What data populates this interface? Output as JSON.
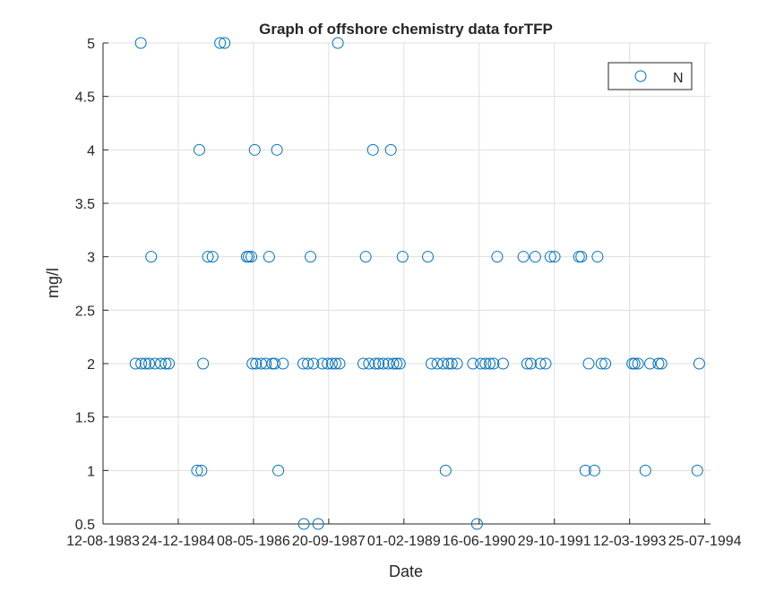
{
  "chart_data": {
    "type": "scatter",
    "title": "Graph of offshore chemistry data forTFP",
    "xlabel": "Date",
    "ylabel": "mg/l",
    "grid": true,
    "legend_position": "top-right",
    "marker": "open-circle",
    "series_color": "#0072BD",
    "xlim": [
      "1983-08-12",
      "1994-09-01"
    ],
    "ylim": [
      0.5,
      5
    ],
    "x_ticks": [
      "1983-08-12",
      "1984-12-24",
      "1986-05-08",
      "1987-09-20",
      "1989-02-01",
      "1990-06-16",
      "1991-10-29",
      "1993-03-12",
      "1994-07-25"
    ],
    "x_tick_labels": [
      "12-08-1983",
      "24-12-1984",
      "08-05-1986",
      "20-09-1987",
      "01-02-1989",
      "16-06-1990",
      "29-10-1991",
      "12-03-1993",
      "25-07-1994"
    ],
    "y_ticks": [
      0.5,
      1,
      1.5,
      2,
      2.5,
      3,
      3.5,
      4,
      4.5,
      5
    ],
    "y_tick_labels": [
      "0.5",
      "1",
      "1.5",
      "2",
      "2.5",
      "3",
      "3.5",
      "4",
      "4.5",
      "5"
    ],
    "series": [
      {
        "name": "N",
        "points": [
          {
            "x": "1984-03-15",
            "y": 2
          },
          {
            "x": "1984-04-19",
            "y": 5
          },
          {
            "x": "1984-04-22",
            "y": 2
          },
          {
            "x": "1984-05-20",
            "y": 2
          },
          {
            "x": "1984-06-14",
            "y": 2
          },
          {
            "x": "1984-06-27",
            "y": 3
          },
          {
            "x": "1984-07-22",
            "y": 2
          },
          {
            "x": "1984-08-30",
            "y": 2
          },
          {
            "x": "1984-10-01",
            "y": 2
          },
          {
            "x": "1984-10-23",
            "y": 2
          },
          {
            "x": "1985-04-28",
            "y": 1
          },
          {
            "x": "1985-05-13",
            "y": 4
          },
          {
            "x": "1985-05-27",
            "y": 1
          },
          {
            "x": "1985-06-07",
            "y": 2
          },
          {
            "x": "1985-07-09",
            "y": 3
          },
          {
            "x": "1985-08-09",
            "y": 3
          },
          {
            "x": "1985-09-28",
            "y": 5
          },
          {
            "x": "1985-10-28",
            "y": 5
          },
          {
            "x": "1986-03-24",
            "y": 3
          },
          {
            "x": "1986-04-06",
            "y": 3
          },
          {
            "x": "1986-04-24",
            "y": 3
          },
          {
            "x": "1986-05-01",
            "y": 2
          },
          {
            "x": "1986-05-16",
            "y": 4
          },
          {
            "x": "1986-05-25",
            "y": 2
          },
          {
            "x": "1986-06-28",
            "y": 2
          },
          {
            "x": "1986-07-29",
            "y": 2
          },
          {
            "x": "1986-08-20",
            "y": 3
          },
          {
            "x": "1986-09-10",
            "y": 2
          },
          {
            "x": "1986-09-26",
            "y": 2
          },
          {
            "x": "1986-10-11",
            "y": 4
          },
          {
            "x": "1986-10-20",
            "y": 1
          },
          {
            "x": "1986-11-20",
            "y": 2
          },
          {
            "x": "1987-04-04",
            "y": 2
          },
          {
            "x": "1987-04-08",
            "y": 0.5
          },
          {
            "x": "1987-05-04",
            "y": 2
          },
          {
            "x": "1987-05-22",
            "y": 3
          },
          {
            "x": "1987-06-10",
            "y": 2
          },
          {
            "x": "1987-07-12",
            "y": 0.5
          },
          {
            "x": "1987-08-09",
            "y": 2
          },
          {
            "x": "1987-09-13",
            "y": 2
          },
          {
            "x": "1987-10-11",
            "y": 2
          },
          {
            "x": "1987-11-05",
            "y": 2
          },
          {
            "x": "1987-11-20",
            "y": 5
          },
          {
            "x": "1987-12-01",
            "y": 2
          },
          {
            "x": "1988-05-07",
            "y": 2
          },
          {
            "x": "1988-05-23",
            "y": 3
          },
          {
            "x": "1988-06-14",
            "y": 2
          },
          {
            "x": "1988-07-10",
            "y": 4
          },
          {
            "x": "1988-07-25",
            "y": 2
          },
          {
            "x": "1988-08-18",
            "y": 2
          },
          {
            "x": "1988-09-17",
            "y": 2
          },
          {
            "x": "1988-10-20",
            "y": 2
          },
          {
            "x": "1988-11-06",
            "y": 4
          },
          {
            "x": "1988-11-22",
            "y": 2
          },
          {
            "x": "1988-12-15",
            "y": 2
          },
          {
            "x": "1989-01-05",
            "y": 2
          },
          {
            "x": "1989-01-23",
            "y": 3
          },
          {
            "x": "1989-07-10",
            "y": 3
          },
          {
            "x": "1989-08-03",
            "y": 2
          },
          {
            "x": "1989-09-11",
            "y": 2
          },
          {
            "x": "1989-10-20",
            "y": 2
          },
          {
            "x": "1989-11-05",
            "y": 1
          },
          {
            "x": "1989-11-23",
            "y": 2
          },
          {
            "x": "1989-12-16",
            "y": 2
          },
          {
            "x": "1990-01-20",
            "y": 2
          },
          {
            "x": "1990-05-06",
            "y": 2
          },
          {
            "x": "1990-06-02",
            "y": 0.5
          },
          {
            "x": "1990-06-27",
            "y": 2
          },
          {
            "x": "1990-07-28",
            "y": 2
          },
          {
            "x": "1990-08-25",
            "y": 2
          },
          {
            "x": "1990-09-20",
            "y": 2
          },
          {
            "x": "1990-10-14",
            "y": 3
          },
          {
            "x": "1990-11-22",
            "y": 2
          },
          {
            "x": "1991-04-06",
            "y": 3
          },
          {
            "x": "1991-05-01",
            "y": 2
          },
          {
            "x": "1991-05-26",
            "y": 2
          },
          {
            "x": "1991-06-24",
            "y": 3
          },
          {
            "x": "1991-07-28",
            "y": 2
          },
          {
            "x": "1991-09-01",
            "y": 2
          },
          {
            "x": "1991-10-03",
            "y": 3
          },
          {
            "x": "1991-10-31",
            "y": 3
          },
          {
            "x": "1992-04-10",
            "y": 3
          },
          {
            "x": "1992-04-25",
            "y": 3
          },
          {
            "x": "1992-05-22",
            "y": 1
          },
          {
            "x": "1992-06-13",
            "y": 2
          },
          {
            "x": "1992-07-21",
            "y": 1
          },
          {
            "x": "1992-08-11",
            "y": 3
          },
          {
            "x": "1992-09-06",
            "y": 2
          },
          {
            "x": "1992-10-02",
            "y": 2
          },
          {
            "x": "1993-03-30",
            "y": 2
          },
          {
            "x": "1993-04-14",
            "y": 2
          },
          {
            "x": "1993-05-07",
            "y": 2
          },
          {
            "x": "1993-06-25",
            "y": 1
          },
          {
            "x": "1993-07-26",
            "y": 2
          },
          {
            "x": "1993-09-20",
            "y": 2
          },
          {
            "x": "1993-10-10",
            "y": 2
          },
          {
            "x": "1994-06-05",
            "y": 1
          },
          {
            "x": "1994-06-18",
            "y": 2
          }
        ]
      }
    ]
  }
}
